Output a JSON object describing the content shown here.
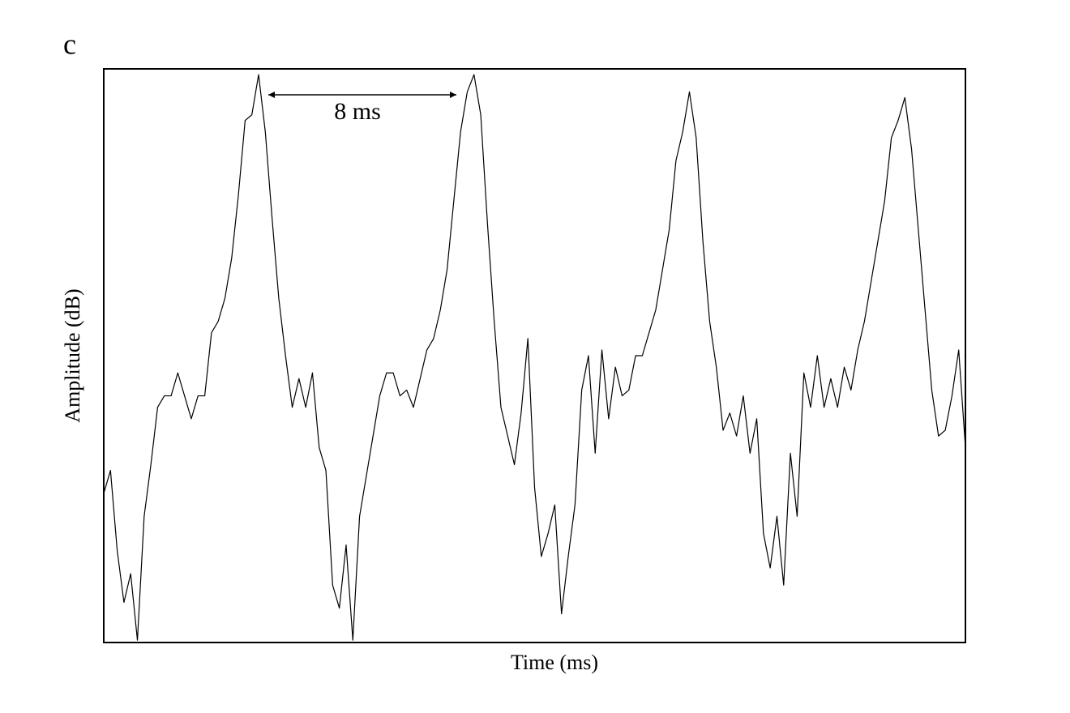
{
  "chart_data": {
    "type": "line",
    "panel_label": "c",
    "x_label": "Time (ms)",
    "y_label": "Amplitude (dB)",
    "annotation": "8 ms",
    "xlim": [
      0,
      32
    ],
    "ylim": [
      0,
      100
    ],
    "x": [
      0,
      0.25,
      0.5,
      0.75,
      1,
      1.25,
      1.5,
      1.75,
      2,
      2.25,
      2.5,
      2.75,
      3,
      3.25,
      3.5,
      3.75,
      4,
      4.25,
      4.5,
      4.75,
      5,
      5.25,
      5.5,
      5.75,
      6,
      6.25,
      6.5,
      6.75,
      7,
      7.25,
      7.5,
      7.75,
      8,
      8.25,
      8.5,
      8.75,
      9,
      9.25,
      9.5,
      9.75,
      10,
      10.25,
      10.5,
      10.75,
      11,
      11.25,
      11.5,
      11.75,
      12,
      12.25,
      12.5,
      12.75,
      13,
      13.25,
      13.5,
      13.75,
      14,
      14.25,
      14.5,
      14.75,
      15,
      15.25,
      15.5,
      15.75,
      16,
      16.25,
      16.5,
      16.75,
      17,
      17.25,
      17.5,
      17.75,
      18,
      18.25,
      18.5,
      18.75,
      19,
      19.25,
      19.5,
      19.75,
      20,
      20.25,
      20.5,
      20.75,
      21,
      21.25,
      21.5,
      21.75,
      22,
      22.25,
      22.5,
      22.75,
      23,
      23.25,
      23.5,
      23.75,
      24,
      24.25,
      24.5,
      24.75,
      25,
      25.25,
      25.5,
      25.75,
      26,
      26.25,
      26.5,
      26.75,
      27,
      27.25,
      27.5,
      27.75,
      28,
      28.25,
      28.5,
      28.75,
      29,
      29.25,
      29.5,
      29.75,
      30,
      30.25,
      30.5,
      30.75,
      31,
      31.25,
      31.5,
      31.75,
      32
    ],
    "series": [
      {
        "color": "#000000",
        "values": [
          26,
          30,
          16,
          7,
          12,
          0.4,
          22,
          31,
          41,
          43,
          43,
          47,
          43,
          39,
          43,
          43,
          54,
          56,
          60,
          67,
          78,
          91,
          92,
          99,
          89,
          74,
          60,
          50,
          41,
          46,
          41,
          47,
          34,
          30,
          10,
          6,
          17,
          0.4,
          22,
          29,
          36,
          43,
          47,
          47,
          43,
          44,
          41,
          46,
          51,
          53,
          58,
          65,
          77,
          89,
          96,
          99,
          92,
          73,
          56,
          41,
          36,
          31,
          40,
          53,
          27,
          15,
          19,
          24,
          5,
          15,
          24,
          44,
          50,
          33,
          51,
          39,
          48,
          43,
          44,
          50,
          50,
          54,
          58,
          65,
          72,
          84,
          89,
          96,
          88,
          70,
          56,
          48,
          37,
          40,
          36,
          43,
          33,
          39,
          19,
          13,
          22,
          10,
          33,
          22,
          47,
          41,
          50,
          41,
          46,
          41,
          48,
          44,
          51,
          56,
          63,
          70,
          77,
          88,
          91,
          95,
          86,
          72,
          58,
          44,
          36,
          37,
          43,
          51,
          34
        ]
      }
    ]
  }
}
